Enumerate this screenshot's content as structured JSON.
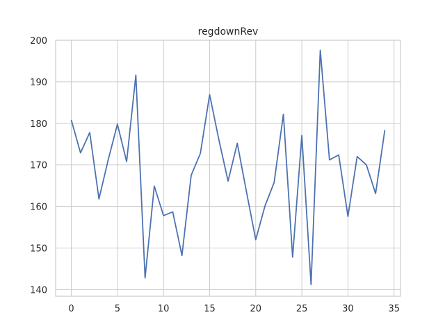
{
  "chart_data": {
    "type": "line",
    "title": "regdownRev",
    "xlabel": "",
    "ylabel": "",
    "xlim": [
      -1.7,
      35.7
    ],
    "ylim": [
      138.4,
      200
    ],
    "xticks": [
      0,
      5,
      10,
      15,
      20,
      25,
      30,
      35
    ],
    "yticks": [
      140,
      150,
      160,
      170,
      180,
      190,
      200
    ],
    "grid": true,
    "series": [
      {
        "color": "#4c72b0",
        "x": [
          0,
          1,
          2,
          3,
          4,
          5,
          6,
          7,
          8,
          9,
          10,
          11,
          12,
          13,
          14,
          15,
          16,
          17,
          18,
          19,
          20,
          21,
          22,
          23,
          24,
          25,
          26,
          27,
          28,
          29,
          30,
          31,
          32,
          33,
          34
        ],
        "values": [
          180.8,
          172.9,
          177.8,
          161.8,
          171.2,
          179.8,
          170.8,
          191.6,
          142.8,
          164.9,
          157.8,
          158.7,
          148.2,
          167.5,
          172.8,
          186.9,
          176.1,
          166.1,
          175.2,
          163.5,
          152.0,
          160.1,
          165.8,
          182.2,
          147.8,
          177.1,
          141.2,
          197.6,
          171.2,
          172.4,
          157.6,
          172.0,
          170.0,
          163.1,
          178.4
        ]
      }
    ]
  }
}
